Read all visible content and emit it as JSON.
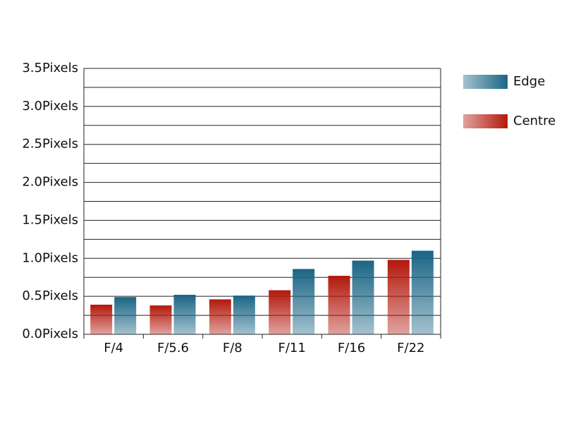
{
  "chart_data": {
    "type": "bar",
    "categories": [
      "F/4",
      "F/5.6",
      "F/8",
      "F/11",
      "F/16",
      "F/22"
    ],
    "series": [
      {
        "name": "Edge",
        "color": "#1b6585",
        "values": [
          0.49,
          0.52,
          0.51,
          0.86,
          0.97,
          1.1
        ]
      },
      {
        "name": "Centre",
        "color": "#b3180c",
        "values": [
          0.39,
          0.38,
          0.46,
          0.58,
          0.77,
          0.98
        ]
      }
    ],
    "ylim": [
      0,
      3.5
    ],
    "yticks": [
      {
        "value": 0,
        "label": "0.0Pixels"
      },
      {
        "value": 0.5,
        "label": "0.5Pixels"
      },
      {
        "value": 1,
        "label": "1.0Pixels"
      },
      {
        "value": 1.5,
        "label": "1.5Pixels"
      },
      {
        "value": 2,
        "label": "2.0Pixels"
      },
      {
        "value": 2.5,
        "label": "2.5Pixels"
      },
      {
        "value": 3,
        "label": "3.0Pixels"
      },
      {
        "value": 3.5,
        "label": "3.5Pixels"
      }
    ],
    "minor_yticks": [
      0.25,
      0.75,
      1.25,
      1.75,
      2.25,
      2.75,
      3.25
    ],
    "grid": true,
    "legend": "right"
  }
}
